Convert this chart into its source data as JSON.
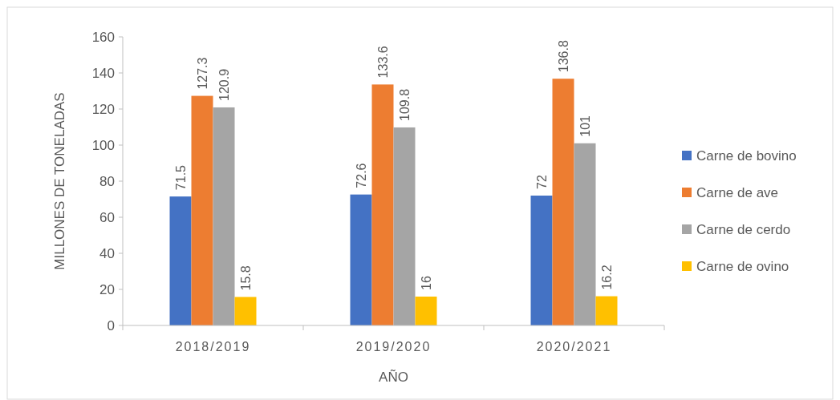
{
  "chart_data": {
    "type": "bar",
    "xlabel": "AÑO",
    "ylabel": "MILLONES DE TONELADAS",
    "categories": [
      "2018/2019",
      "2019/2020",
      "2020/2021"
    ],
    "series": [
      {
        "name": "Carne de bovino",
        "color": "#4472c4",
        "values": [
          71.5,
          72.6,
          72
        ]
      },
      {
        "name": "Carne de ave",
        "color": "#ed7d31",
        "values": [
          127.3,
          133.6,
          136.8
        ]
      },
      {
        "name": "Carne de cerdo",
        "color": "#a5a5a5",
        "values": [
          120.9,
          109.8,
          101
        ]
      },
      {
        "name": "Carne de ovino",
        "color": "#ffc000",
        "values": [
          15.8,
          16,
          16.2
        ]
      }
    ],
    "ylim": [
      0,
      160
    ],
    "yticks": [
      0,
      20,
      40,
      60,
      80,
      100,
      120,
      140,
      160
    ],
    "data_labels": true,
    "grid": false,
    "legend": "right"
  }
}
